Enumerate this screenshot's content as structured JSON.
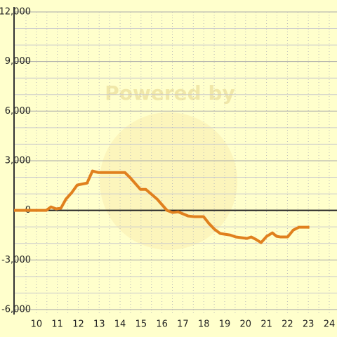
{
  "chart_data": {
    "type": "line",
    "watermark": "Powered by",
    "x": [
      8.93,
      10.47,
      10.7,
      10.94,
      11.17,
      11.41,
      11.68,
      11.95,
      12.42,
      12.68,
      12.95,
      14.23,
      14.5,
      14.97,
      15.23,
      15.77,
      16.24,
      16.51,
      16.78,
      17.25,
      17.52,
      17.99,
      18.26,
      18.52,
      18.79,
      19.26,
      19.53,
      20.07,
      20.27,
      20.47,
      20.74,
      21.01,
      21.28,
      21.48,
      21.68,
      22.01,
      22.28,
      22.55,
      23.05
    ],
    "series": [
      {
        "color": "#e0801e",
        "values": [
          0,
          0,
          210,
          90,
          130,
          680,
          1060,
          1530,
          1650,
          2380,
          2290,
          2290,
          1950,
          1270,
          1270,
          680,
          0,
          -130,
          -90,
          -340,
          -380,
          -380,
          -810,
          -1150,
          -1400,
          -1490,
          -1610,
          -1700,
          -1610,
          -1740,
          -1950,
          -1570,
          -1360,
          -1570,
          -1610,
          -1610,
          -1190,
          -1020,
          -1020
        ]
      }
    ],
    "xlim": [
      8.93,
      24.37
    ],
    "xticks": [
      10,
      11,
      12,
      13,
      14,
      15,
      16,
      17,
      18,
      19,
      20,
      21,
      22,
      23,
      24
    ],
    "x_minor_ticks": [
      9.5,
      10.5,
      11.5,
      12.5,
      13.5,
      14.5,
      15.5,
      16.5,
      17.5,
      18.5,
      19.5,
      20.5,
      21.5,
      22.5,
      23.5
    ],
    "ylim": [
      -6300,
      12000
    ],
    "yticks": [
      {
        "value": -6000,
        "label": "-6,000"
      },
      {
        "value": -3000,
        "label": "-3,000"
      },
      0,
      {
        "value": 3000,
        "label": "3,000"
      },
      {
        "value": 6000,
        "label": "6,000"
      },
      {
        "value": 9000,
        "label": "9,000"
      },
      {
        "value": 12000,
        "label": "12,000"
      }
    ],
    "y_minor_ticks": [
      -5000,
      -4000,
      -2000,
      -1000,
      1000,
      2000,
      4000,
      5000,
      7000,
      8000,
      10000,
      11000
    ],
    "grid": true
  }
}
